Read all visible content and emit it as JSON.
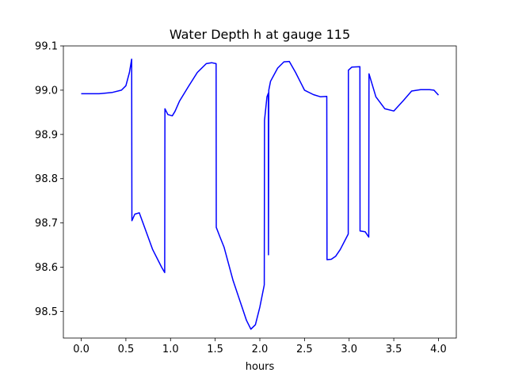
{
  "chart_data": {
    "type": "line",
    "title": "Water Depth h at gauge 115",
    "xlabel": "hours",
    "ylabel": "",
    "xlim": [
      -0.2,
      4.2
    ],
    "ylim": [
      98.44,
      99.1
    ],
    "xticks": [
      0.0,
      0.5,
      1.0,
      1.5,
      2.0,
      2.5,
      3.0,
      3.5,
      4.0
    ],
    "xtick_labels": [
      "0.0",
      "0.5",
      "1.0",
      "1.5",
      "2.0",
      "2.5",
      "3.0",
      "3.5",
      "4.0"
    ],
    "yticks": [
      98.5,
      98.6,
      98.7,
      98.8,
      98.9,
      99.0,
      99.1
    ],
    "ytick_labels": [
      "98.5",
      "98.6",
      "98.7",
      "98.8",
      "98.9",
      "99.0",
      "99.1"
    ],
    "grid": false,
    "series": [
      {
        "color": "#0000ff",
        "x": [
          0.0,
          0.2,
          0.35,
          0.45,
          0.5,
          0.54,
          0.565,
          0.567,
          0.6,
          0.65,
          0.7,
          0.8,
          0.9,
          0.935,
          0.937,
          0.97,
          1.02,
          1.05,
          1.1,
          1.2,
          1.3,
          1.4,
          1.46,
          1.51,
          1.512,
          1.55,
          1.6,
          1.7,
          1.8,
          1.85,
          1.9,
          1.95,
          2.0,
          2.05,
          2.052,
          2.08,
          2.095,
          2.097,
          2.1,
          2.12,
          2.2,
          2.27,
          2.33,
          2.4,
          2.5,
          2.6,
          2.68,
          2.75,
          2.752,
          2.8,
          2.85,
          2.9,
          2.99,
          2.992,
          3.03,
          3.12,
          3.122,
          3.18,
          3.22,
          3.222,
          3.3,
          3.4,
          3.5,
          3.6,
          3.7,
          3.8,
          3.9,
          3.95,
          4.0
        ],
        "y": [
          98.992,
          98.992,
          98.995,
          99.0,
          99.01,
          99.04,
          99.07,
          98.705,
          98.72,
          98.723,
          98.695,
          98.64,
          98.6,
          98.588,
          98.958,
          98.945,
          98.942,
          98.952,
          98.975,
          99.008,
          99.04,
          99.06,
          99.062,
          99.06,
          98.69,
          98.67,
          98.645,
          98.57,
          98.51,
          98.48,
          98.46,
          98.47,
          98.51,
          98.56,
          98.932,
          98.985,
          98.993,
          98.628,
          99.0,
          99.02,
          99.05,
          99.064,
          99.065,
          99.04,
          99.0,
          98.99,
          98.985,
          98.986,
          98.617,
          98.618,
          98.625,
          98.64,
          98.675,
          99.045,
          99.052,
          99.053,
          98.682,
          98.68,
          98.668,
          99.037,
          98.985,
          98.958,
          98.953,
          98.975,
          98.998,
          99.001,
          99.001,
          99.0,
          98.989
        ]
      }
    ]
  }
}
